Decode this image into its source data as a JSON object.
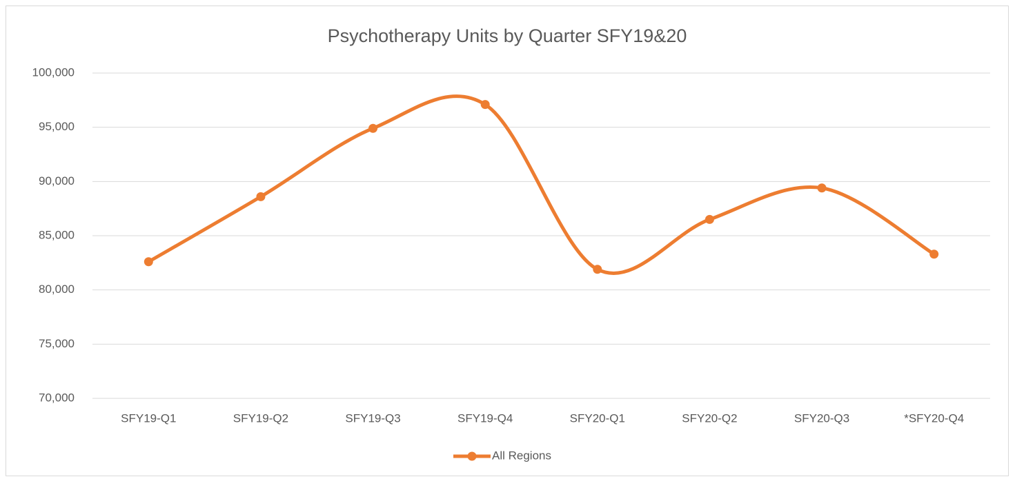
{
  "chart_data": {
    "type": "line",
    "title": "Psychotherapy Units by Quarter SFY19&20",
    "categories": [
      "SFY19-Q1",
      "SFY19-Q2",
      "SFY19-Q3",
      "SFY19-Q4",
      "SFY20-Q1",
      "SFY20-Q2",
      "SFY20-Q3",
      "*SFY20-Q4"
    ],
    "series": [
      {
        "name": "All Regions",
        "color": "#ED7D31",
        "values": [
          82600,
          88600,
          94900,
          97100,
          81900,
          86500,
          89400,
          83300
        ]
      }
    ],
    "ylim": [
      70000,
      100000
    ],
    "yticks": [
      {
        "value": 70000,
        "label": "70,000"
      },
      {
        "value": 75000,
        "label": "75,000"
      },
      {
        "value": 80000,
        "label": "80,000"
      },
      {
        "value": 85000,
        "label": "85,000"
      },
      {
        "value": 90000,
        "label": "90,000"
      },
      {
        "value": 95000,
        "label": "95,000"
      },
      {
        "value": 100000,
        "label": "100,000"
      }
    ],
    "grid": true,
    "smooth": true,
    "legend": "bottom"
  }
}
